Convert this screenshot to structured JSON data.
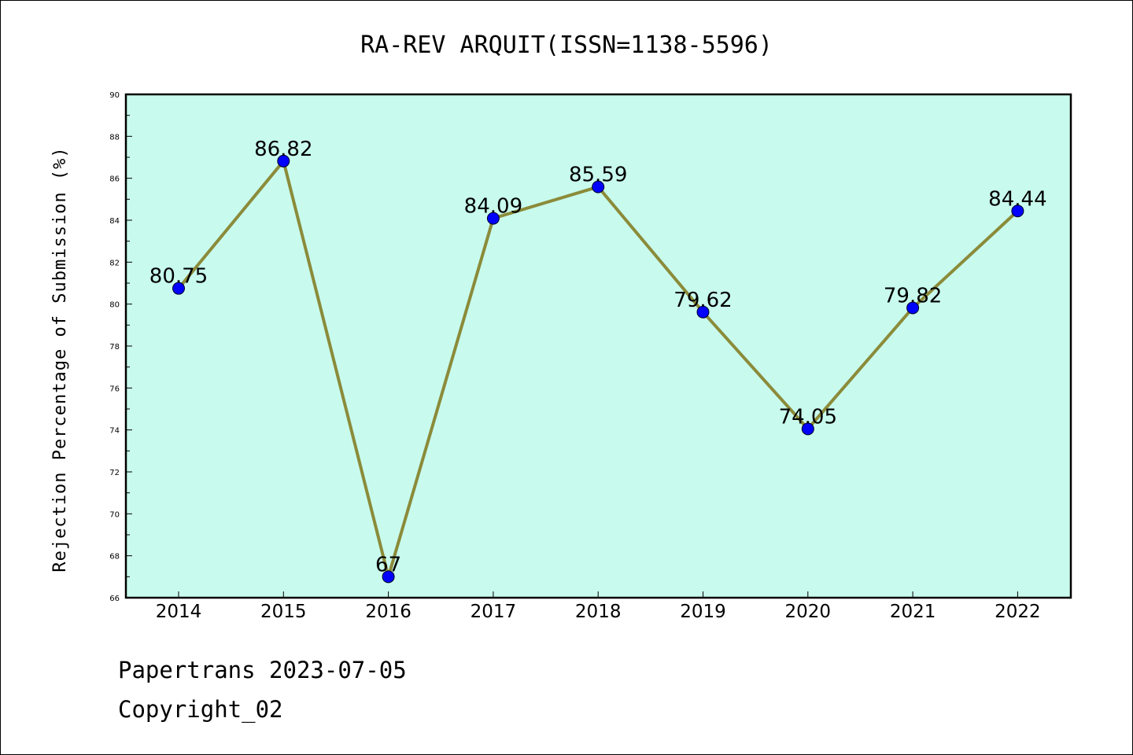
{
  "chart_data": {
    "type": "line",
    "title": "RA-REV ARQUIT(ISSN=1138-5596)",
    "ylabel": "Rejection Percentage of Submission (%)",
    "xlabel": "",
    "categories": [
      "2014",
      "2015",
      "2016",
      "2017",
      "2018",
      "2019",
      "2020",
      "2021",
      "2022"
    ],
    "values": [
      80.75,
      86.82,
      67,
      84.09,
      85.59,
      79.62,
      74.05,
      79.82,
      84.44
    ],
    "data_labels": [
      "80.75",
      "86.82",
      "67",
      "84.09",
      "85.59",
      "79.62",
      "74.05",
      "79.82",
      "84.44"
    ],
    "ylim": [
      66,
      90
    ],
    "yticks": [
      "66",
      "68",
      "70",
      "72",
      "74",
      "76",
      "78",
      "80",
      "82",
      "84",
      "86",
      "88",
      "90"
    ],
    "grid": false,
    "colors": {
      "plot_background": "#c8fbee",
      "line": "#8b8b3a",
      "marker": "#0000ff"
    }
  },
  "footer": {
    "line1": "Papertrans 2023-07-05",
    "line2": "Copyright_02"
  }
}
